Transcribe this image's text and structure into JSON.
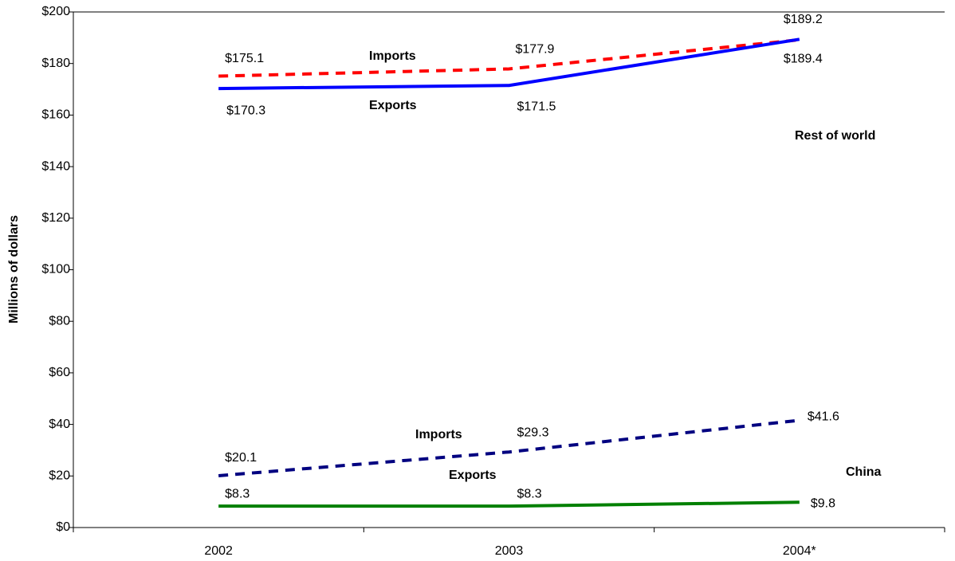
{
  "chart_data": {
    "type": "line",
    "y_label": "Millions of dollars",
    "categories": [
      "2002",
      "2003",
      "2004*"
    ],
    "ylim": [
      0,
      200
    ],
    "yticks": [
      {
        "value": 0,
        "label": "$0"
      },
      {
        "value": 20,
        "label": "$20"
      },
      {
        "value": 40,
        "label": "$40"
      },
      {
        "value": 60,
        "label": "$60"
      },
      {
        "value": 80,
        "label": "$80"
      },
      {
        "value": 100,
        "label": "$100"
      },
      {
        "value": 120,
        "label": "$120"
      },
      {
        "value": 140,
        "label": "$140"
      },
      {
        "value": 160,
        "label": "$160"
      },
      {
        "value": 180,
        "label": "$180"
      },
      {
        "value": 200,
        "label": "$200"
      }
    ],
    "series": [
      {
        "name": "Imports",
        "color": "#ff0000",
        "dashed": true,
        "values": [
          175.1,
          177.9,
          189.2
        ],
        "value_labels": [
          "$175.1",
          "$177.9",
          "$189.2"
        ]
      },
      {
        "name": "Exports",
        "color": "#0000ff",
        "dashed": false,
        "values": [
          170.3,
          171.5,
          189.4
        ],
        "value_labels": [
          "$170.3",
          "$171.5",
          "$189.4"
        ]
      },
      {
        "name": "Imports",
        "color": "#000080",
        "dashed": true,
        "values": [
          20.1,
          29.3,
          41.6
        ],
        "value_labels": [
          "$20.1",
          "$29.3",
          "$41.6"
        ]
      },
      {
        "name": "Exports",
        "color": "#008000",
        "dashed": false,
        "values": [
          8.3,
          8.3,
          9.8
        ],
        "value_labels": [
          "$8.3",
          "$8.3",
          "$9.8"
        ]
      }
    ],
    "annotations": [
      "Rest of world",
      "China"
    ]
  }
}
